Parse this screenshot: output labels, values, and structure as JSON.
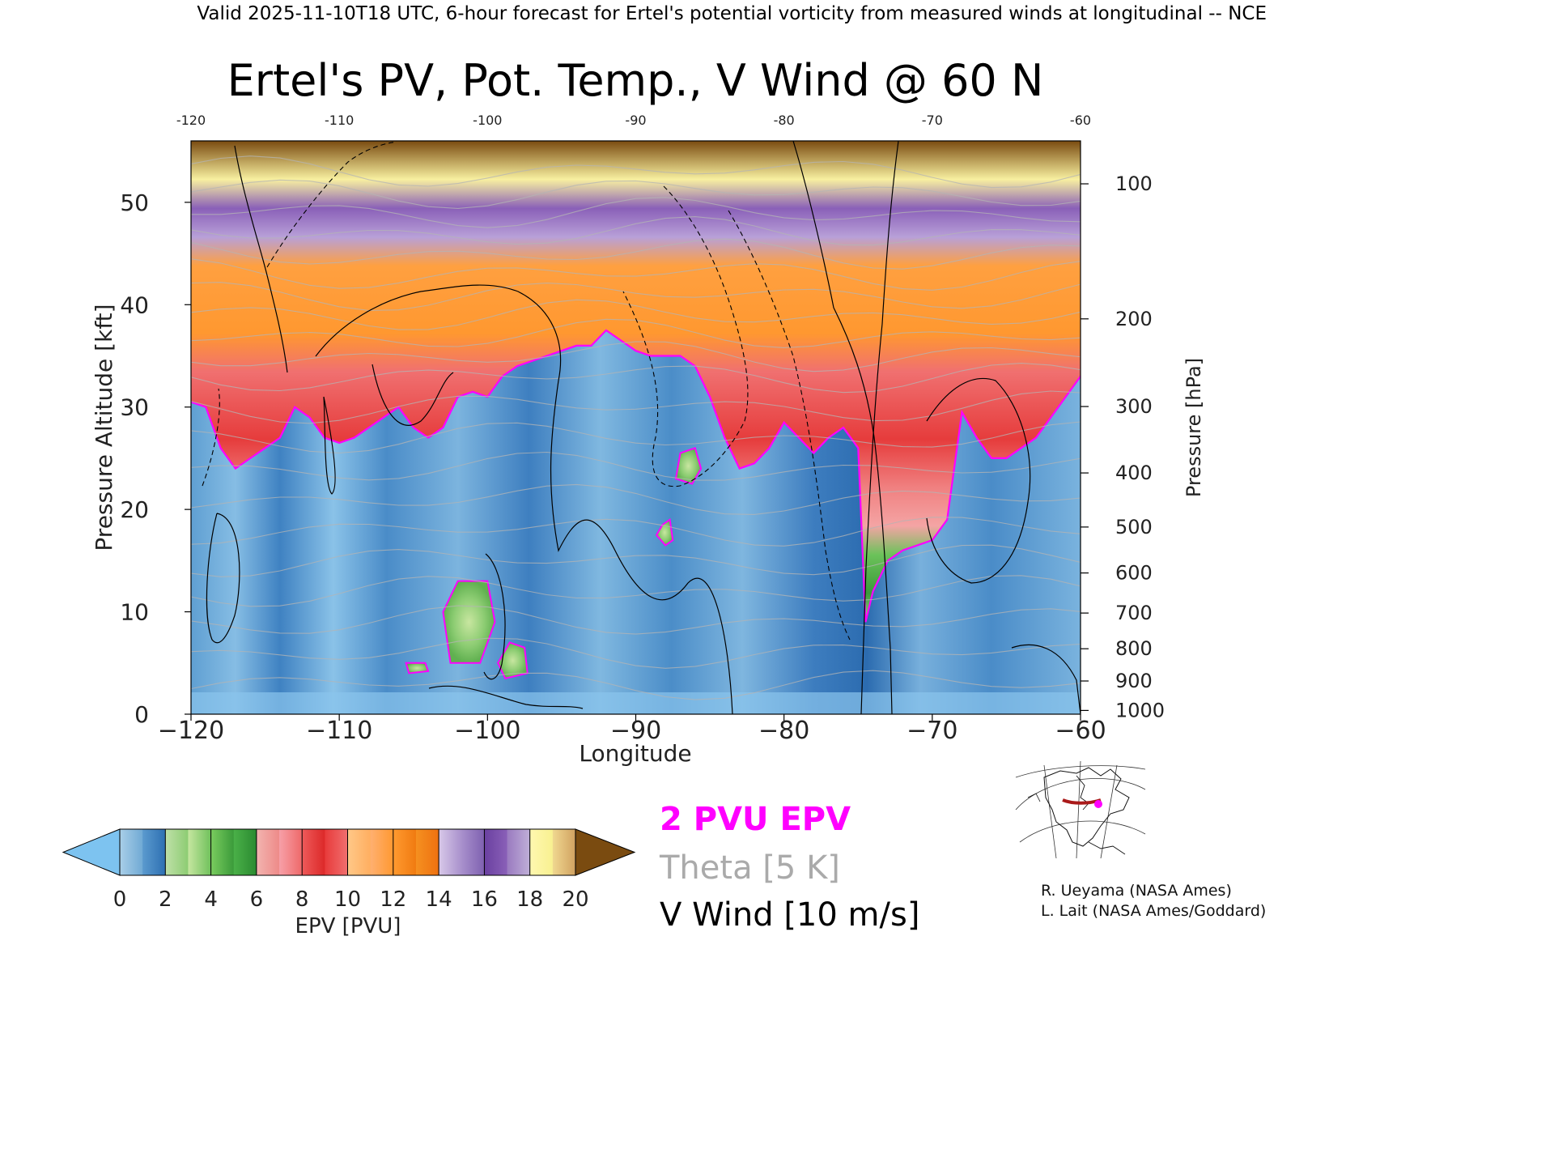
{
  "header": {
    "valid_line": "Valid 2025-11-10T18 UTC, 6-hour forecast for Ertel's potential vorticity from measured winds at longitudinal -- NCE"
  },
  "chart_data": {
    "type": "heatmap",
    "title": "Ertel's PV, Pot. Temp., V Wind @ 60 N",
    "xlabel": "Longitude",
    "ylabel_left": "Pressure Altitude [kft]",
    "ylabel_right": "Pressure [hPa]",
    "xlim": [
      -120,
      -60
    ],
    "ylim": [
      0,
      56
    ],
    "x_ticks": [
      -120,
      -110,
      -100,
      -90,
      -80,
      -70,
      -60
    ],
    "x_tick_labels": [
      "−120",
      "−110",
      "−100",
      "−90",
      "−80",
      "−70",
      "−60"
    ],
    "top_ticks": [
      -120,
      -110,
      -100,
      -90,
      -80,
      -70,
      -60
    ],
    "top_tick_labels": [
      "-120",
      "-110",
      "-100",
      "-90",
      "-80",
      "-70",
      "-60"
    ],
    "y_ticks": [
      0,
      10,
      20,
      30,
      40,
      50
    ],
    "y_tick_labels": [
      "0",
      "10",
      "20",
      "30",
      "40",
      "50"
    ],
    "pressure_ticks": [
      {
        "hpa": 1000,
        "label": "1000"
      },
      {
        "hpa": 900,
        "label": "900"
      },
      {
        "hpa": 800,
        "label": "800"
      },
      {
        "hpa": 700,
        "label": "700"
      },
      {
        "hpa": 600,
        "label": "600"
      },
      {
        "hpa": 500,
        "label": "500"
      },
      {
        "hpa": 400,
        "label": "400"
      },
      {
        "hpa": 300,
        "label": "300"
      },
      {
        "hpa": 200,
        "label": "200"
      },
      {
        "hpa": 100,
        "label": "100"
      }
    ],
    "tropopause_2pvu_kft": [
      [
        -120,
        30.5
      ],
      [
        -119,
        30
      ],
      [
        -118,
        26
      ],
      [
        -117,
        24
      ],
      [
        -116,
        25
      ],
      [
        -115,
        26
      ],
      [
        -114,
        27
      ],
      [
        -113,
        30
      ],
      [
        -112,
        29
      ],
      [
        -111,
        27
      ],
      [
        -110,
        26.5
      ],
      [
        -109,
        27
      ],
      [
        -108,
        28
      ],
      [
        -107,
        29
      ],
      [
        -106,
        30
      ],
      [
        -105,
        28
      ],
      [
        -104,
        27
      ],
      [
        -103,
        28
      ],
      [
        -102,
        31
      ],
      [
        -101,
        31.5
      ],
      [
        -100,
        31
      ],
      [
        -99,
        33
      ],
      [
        -98,
        34
      ],
      [
        -97,
        34.5
      ],
      [
        -96,
        35
      ],
      [
        -95,
        35.5
      ],
      [
        -94,
        36
      ],
      [
        -93,
        36
      ],
      [
        -92,
        37.5
      ],
      [
        -91,
        36.5
      ],
      [
        -90,
        35.5
      ],
      [
        -89,
        35
      ],
      [
        -88,
        35
      ],
      [
        -87,
        35
      ],
      [
        -86,
        34
      ],
      [
        -85,
        31
      ],
      [
        -84,
        27
      ],
      [
        -83,
        24
      ],
      [
        -82,
        24.5
      ],
      [
        -81,
        26
      ],
      [
        -80,
        28.5
      ],
      [
        -79,
        27
      ],
      [
        -78,
        25.5
      ],
      [
        -77,
        27
      ],
      [
        -76,
        28
      ],
      [
        -75,
        26
      ],
      [
        -74.5,
        9
      ],
      [
        -74,
        12
      ],
      [
        -73,
        15
      ],
      [
        -72,
        16
      ],
      [
        -71,
        16.5
      ],
      [
        -70,
        17
      ],
      [
        -69,
        19
      ],
      [
        -68,
        29.5
      ],
      [
        -67,
        27
      ],
      [
        -66,
        25
      ],
      [
        -65,
        25
      ],
      [
        -64,
        26
      ],
      [
        -63,
        27
      ],
      [
        -62,
        29
      ],
      [
        -61,
        31
      ],
      [
        -60,
        33
      ]
    ],
    "pv_low_patches": [
      {
        "label": "",
        "points": [
          [
            -102,
            13
          ],
          [
            -100,
            13
          ],
          [
            -99.5,
            9
          ],
          [
            -100.5,
            5
          ],
          [
            -102.5,
            5
          ],
          [
            -103,
            10
          ]
        ]
      },
      {
        "label": "",
        "points": [
          [
            -98.5,
            7
          ],
          [
            -97.5,
            6.5
          ],
          [
            -97.3,
            4
          ],
          [
            -98.8,
            3.5
          ],
          [
            -99.3,
            5
          ]
        ]
      },
      {
        "label": "",
        "points": [
          [
            -105.5,
            5
          ],
          [
            -104.2,
            5
          ],
          [
            -104,
            4.2
          ],
          [
            -105.3,
            4
          ]
        ]
      },
      {
        "label": "",
        "points": [
          [
            -87,
            25.5
          ],
          [
            -86,
            26
          ],
          [
            -85.6,
            24
          ],
          [
            -86.2,
            22.5
          ],
          [
            -87.3,
            23
          ]
        ]
      },
      {
        "label": "",
        "points": [
          [
            -88.2,
            18.5
          ],
          [
            -87.7,
            19
          ],
          [
            -87.5,
            17
          ],
          [
            -88,
            16.5
          ],
          [
            -88.6,
            17.5
          ]
        ]
      }
    ],
    "colorbar": {
      "label": "EPV [PVU]",
      "ticks": [
        0,
        2,
        4,
        6,
        8,
        10,
        12,
        14,
        16,
        18,
        20
      ],
      "tick_labels": [
        "0",
        "2",
        "4",
        "6",
        "8",
        "10",
        "12",
        "14",
        "16",
        "18",
        "20"
      ],
      "min_extend_color": "#7dc3f0",
      "max_extend_color": "#7a4b10",
      "segments": [
        {
          "from": 0,
          "to": 1,
          "colors": [
            "#a9cfe8",
            "#6fa9d4"
          ]
        },
        {
          "from": 1,
          "to": 2,
          "colors": [
            "#5b9ace",
            "#2d6fb2"
          ]
        },
        {
          "from": 2,
          "to": 3,
          "colors": [
            "#bfe0a8",
            "#8ccc72"
          ]
        },
        {
          "from": 3,
          "to": 4,
          "colors": [
            "#c5e6a0",
            "#6ec05a"
          ]
        },
        {
          "from": 4,
          "to": 5,
          "colors": [
            "#7acc5e",
            "#3a9a3a"
          ]
        },
        {
          "from": 5,
          "to": 6,
          "colors": [
            "#4ab048",
            "#2a8a30"
          ]
        },
        {
          "from": 6,
          "to": 7,
          "colors": [
            "#f2b4b0",
            "#ee8a88"
          ]
        },
        {
          "from": 7,
          "to": 8,
          "colors": [
            "#f7a0a8",
            "#ee6868"
          ]
        },
        {
          "from": 8,
          "to": 9,
          "colors": [
            "#ee5a5a",
            "#dc2828"
          ]
        },
        {
          "from": 9,
          "to": 10,
          "colors": [
            "#e83a3a",
            "#f07070"
          ]
        },
        {
          "from": 10,
          "to": 11,
          "colors": [
            "#ffc888",
            "#ffae60"
          ]
        },
        {
          "from": 11,
          "to": 12,
          "colors": [
            "#ffb070",
            "#ff9830"
          ]
        },
        {
          "from": 12,
          "to": 13,
          "colors": [
            "#ff9a30",
            "#f07a10"
          ]
        },
        {
          "from": 13,
          "to": 14,
          "colors": [
            "#f59020",
            "#ee7010"
          ]
        },
        {
          "from": 14,
          "to": 15,
          "colors": [
            "#d8c8e8",
            "#a890cc"
          ]
        },
        {
          "from": 15,
          "to": 16,
          "colors": [
            "#a890cc",
            "#7e60b0"
          ]
        },
        {
          "from": 16,
          "to": 17,
          "colors": [
            "#6a40a0",
            "#8a60b8"
          ]
        },
        {
          "from": 17,
          "to": 18,
          "colors": [
            "#9a7ac0",
            "#c0b0d8"
          ]
        },
        {
          "from": 18,
          "to": 19,
          "colors": [
            "#fff8b0",
            "#f8f090"
          ]
        },
        {
          "from": 19,
          "to": 20,
          "colors": [
            "#f0d890",
            "#d0a060"
          ]
        }
      ]
    }
  },
  "legend": {
    "pv_line_label": "2 PVU EPV",
    "pv_line_color": "#ff00ff",
    "theta_label": "Theta [5 K]",
    "theta_color": "#aaaaaa",
    "wind_label": "V Wind [10 m/s]",
    "wind_color": "#000000"
  },
  "inset_map": {
    "section_line_color": "#aa1a1a",
    "marker_color": "#ff00ff"
  },
  "credits": {
    "line1": "R. Ueyama (NASA Ames)",
    "line2": "L. Lait (NASA Ames/Goddard)"
  }
}
